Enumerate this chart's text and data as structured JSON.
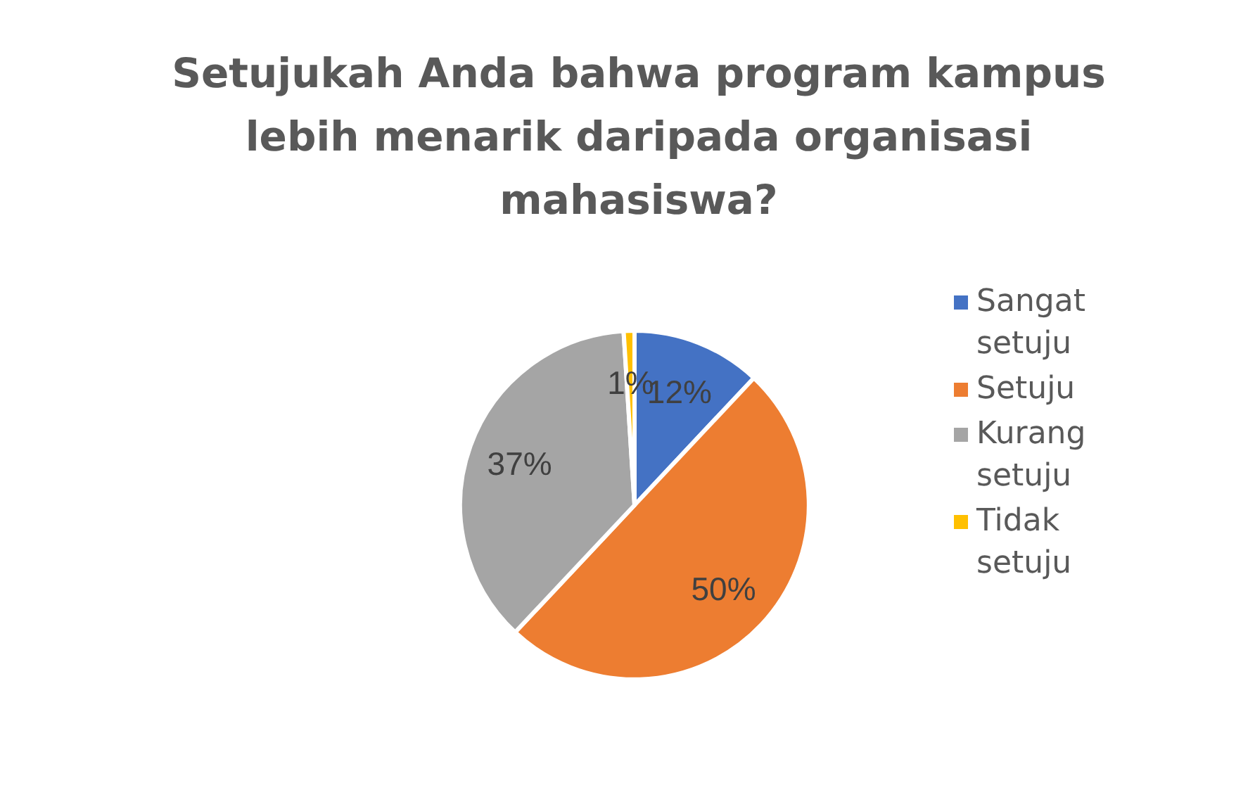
{
  "chart_data": {
    "type": "pie",
    "title": "Setujukah Anda bahwa program kampus lebih menarik daripada organisasi mahasiswa?",
    "categories": [
      "Sangat setuju",
      "Setuju",
      "Kurang setuju",
      "Tidak setuju"
    ],
    "values": [
      12,
      50,
      37,
      1
    ],
    "colors": [
      "#4472c4",
      "#ed7d31",
      "#a5a5a5",
      "#ffc000"
    ],
    "value_labels": [
      "12%",
      "50%",
      "37%",
      "1%"
    ],
    "legend": "right"
  }
}
